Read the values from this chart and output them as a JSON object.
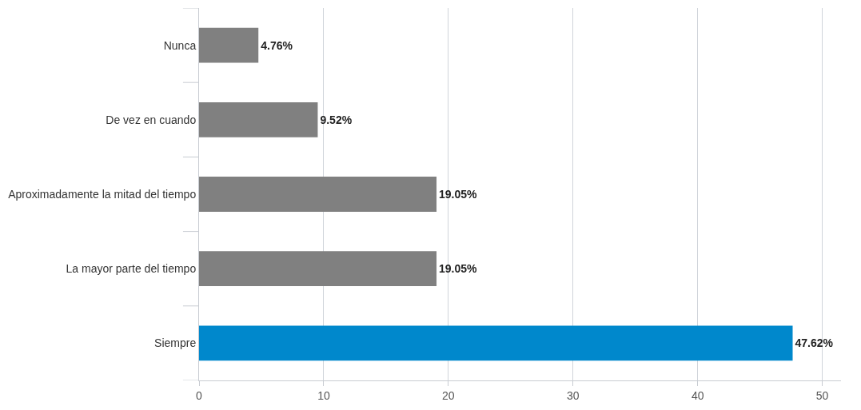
{
  "chart_data": {
    "type": "bar",
    "orientation": "horizontal",
    "categories": [
      "Nunca",
      "De vez en cuando",
      "Aproximadamente la mitad del tiempo",
      "La mayor parte del tiempo",
      "Siempre"
    ],
    "values": [
      4.76,
      9.52,
      19.05,
      19.05,
      47.62
    ],
    "colors": [
      "#808080",
      "#808080",
      "#808080",
      "#808080",
      "#0088cc"
    ],
    "value_labels": [
      "4.76%",
      "9.52%",
      "19.05%",
      "19.05%",
      "47.62%"
    ],
    "xlim": [
      0,
      51.5
    ],
    "xticks": [
      0,
      10,
      20,
      30,
      40,
      50
    ],
    "grid": "x"
  }
}
